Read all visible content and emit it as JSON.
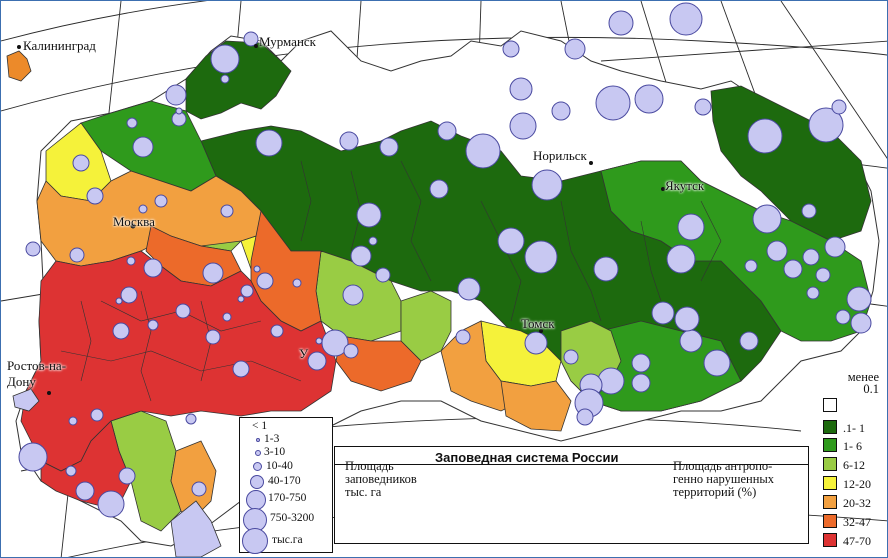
{
  "map": {
    "title": "Заповедная система России",
    "left_caption": [
      "Площадь",
      "заповедников",
      "тыс. га"
    ],
    "right_caption": [
      "Площадь антропо-",
      "генно нарушенных",
      "территорий (%)"
    ],
    "cities": [
      "Калининград",
      "Мурманск",
      "Норильск",
      "Москва",
      "Якутск",
      "Томск",
      "Ростов-на-",
      "Дону",
      "У"
    ],
    "size_legend": {
      "labels": [
        "< 1",
        "1-3",
        "3-10",
        "10-40",
        "40-170",
        "170-750",
        "750-3200",
        "тыс.га"
      ]
    },
    "color_legend": {
      "head": [
        "менее",
        "0.1"
      ],
      "classes": [
        {
          "label": ".1- 1",
          "color": "#1d6a0e"
        },
        {
          "label": "1- 6",
          "color": "#2f9a1c"
        },
        {
          "label": "6-12",
          "color": "#99cc44"
        },
        {
          "label": "12-20",
          "color": "#f5f23a"
        },
        {
          "label": "20-32",
          "color": "#f2a040"
        },
        {
          "label": "32-47",
          "color": "#ec6a2a"
        },
        {
          "label": "47-70",
          "color": "#dd3333"
        }
      ],
      "none_color": "#ffffff"
    },
    "reserve_color": "#c8c8f2"
  }
}
